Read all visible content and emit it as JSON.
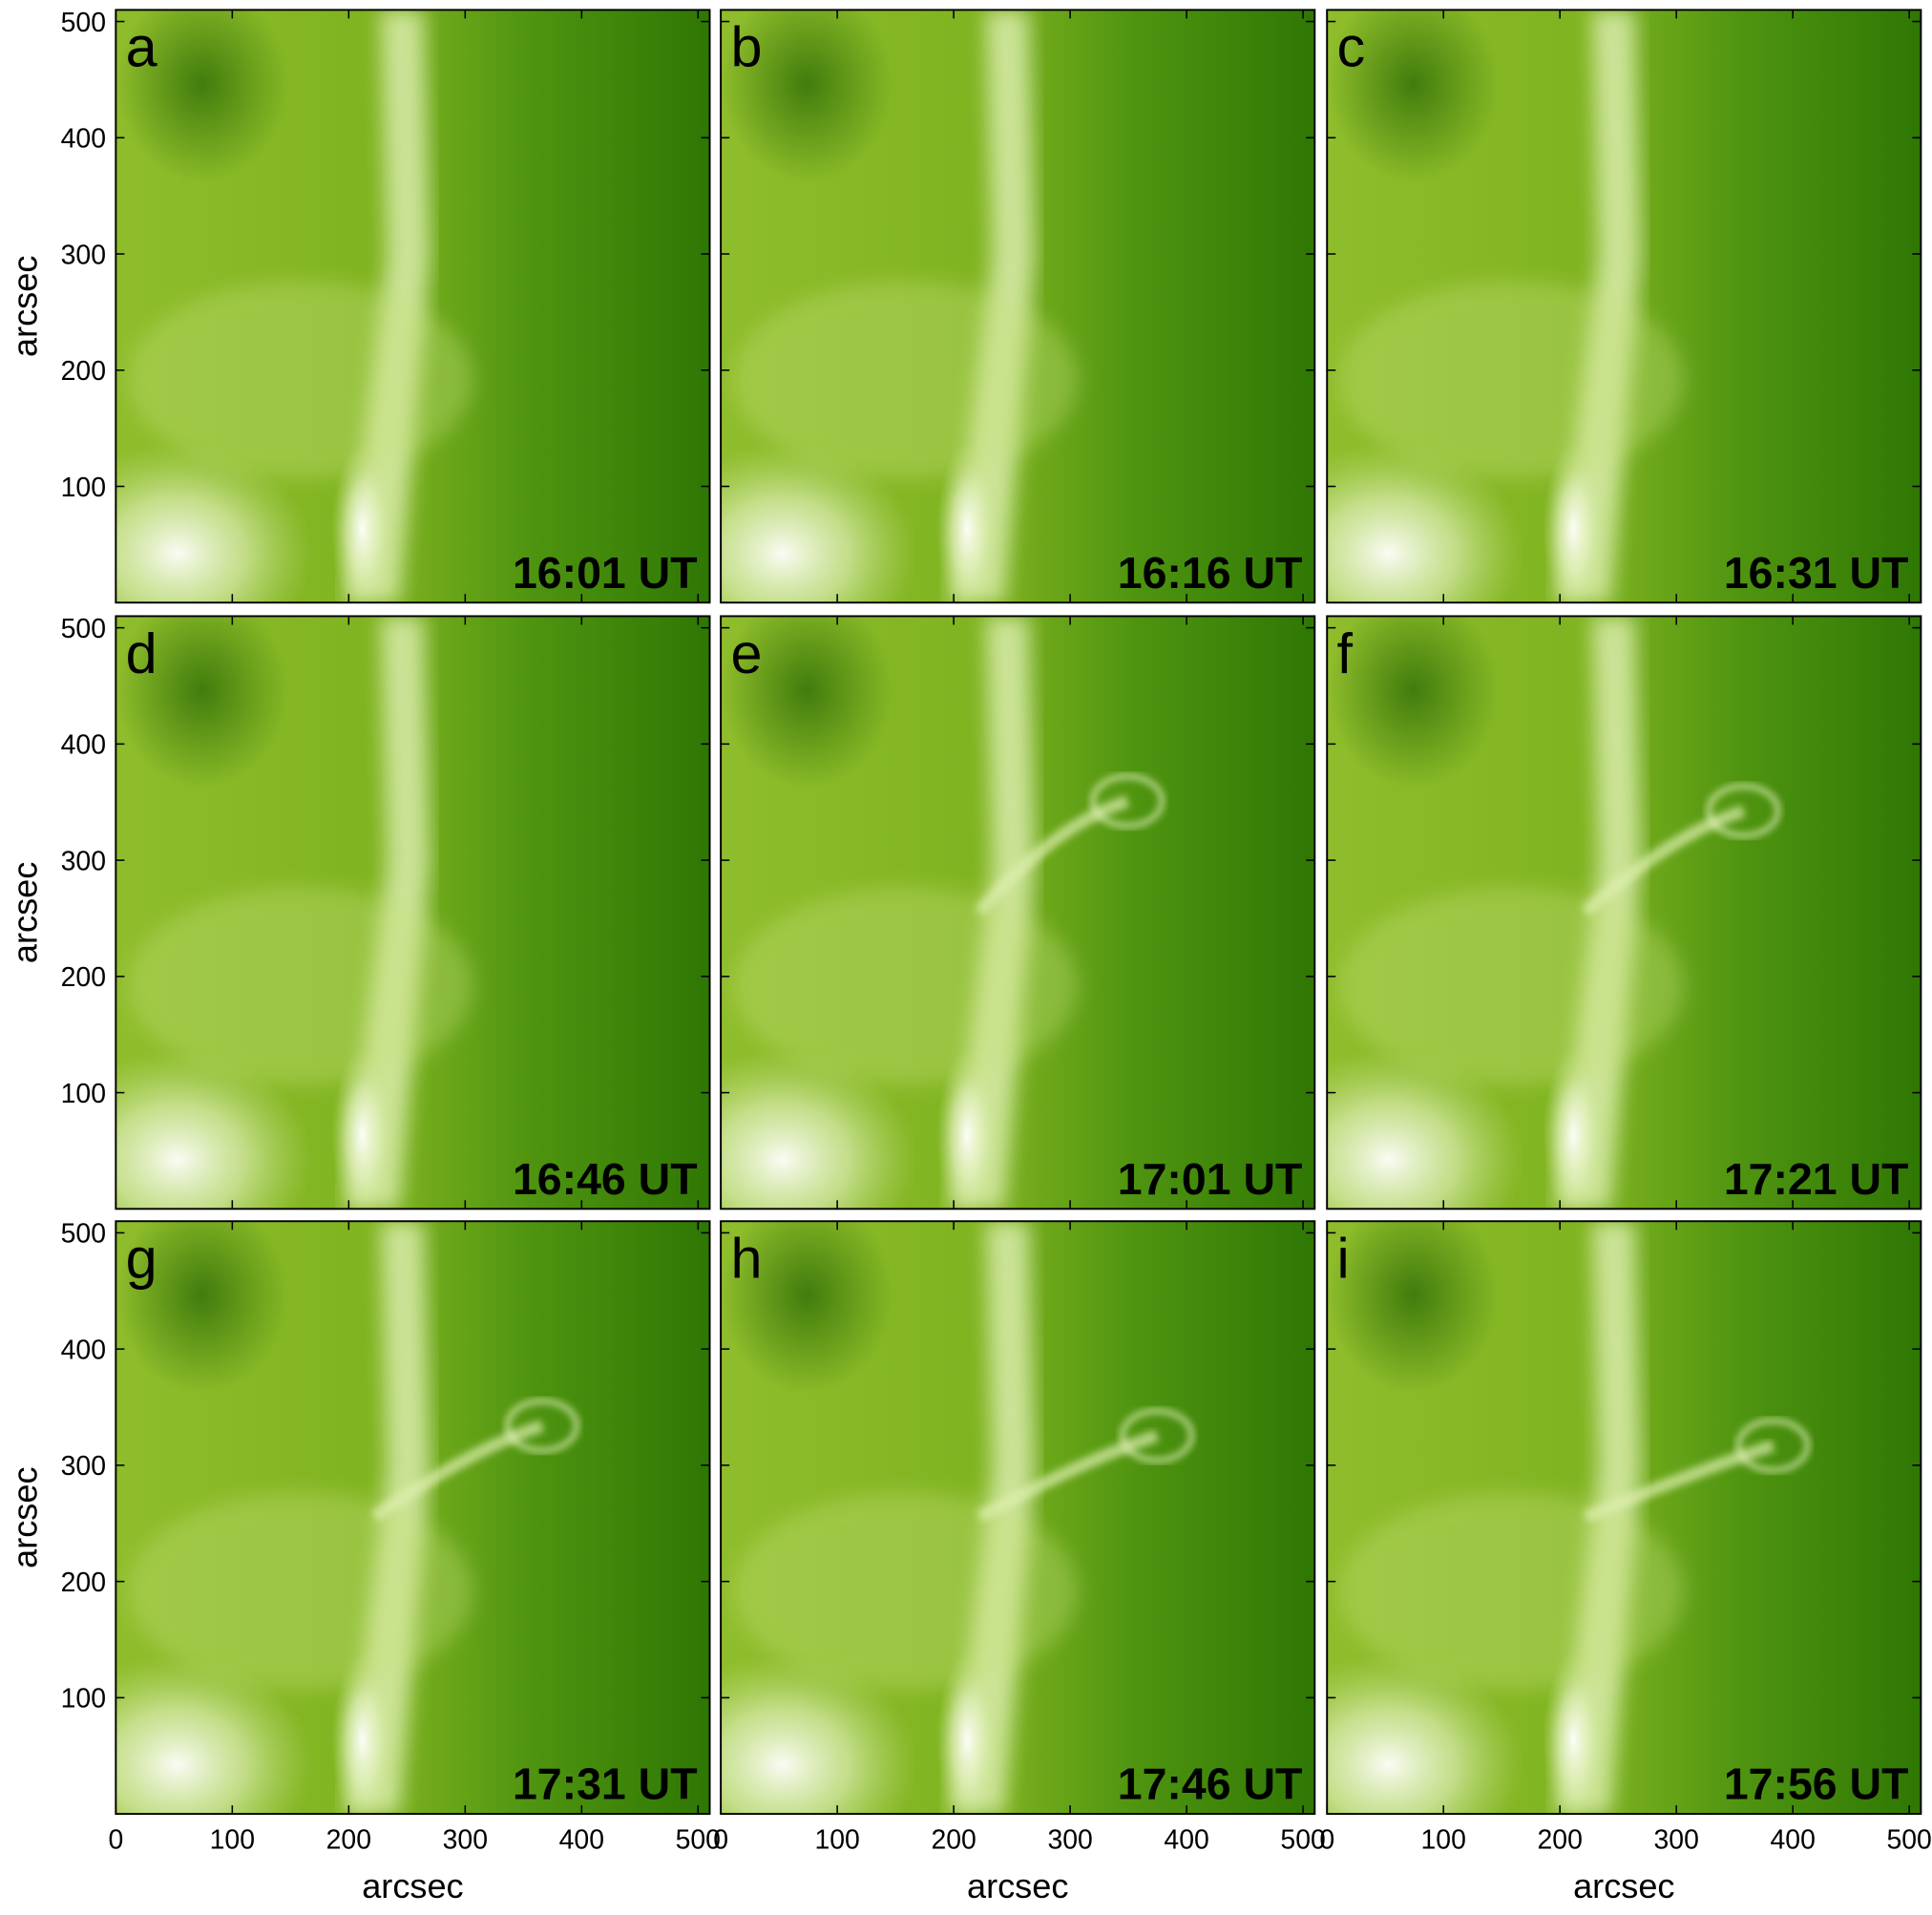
{
  "panels": [
    {
      "letter": "a",
      "time": "16:01 UT"
    },
    {
      "letter": "b",
      "time": "16:16 UT"
    },
    {
      "letter": "c",
      "time": "16:31 UT"
    },
    {
      "letter": "d",
      "time": "16:46 UT"
    },
    {
      "letter": "e",
      "time": "17:01 UT"
    },
    {
      "letter": "f",
      "time": "17:21 UT"
    },
    {
      "letter": "g",
      "time": "17:31 UT"
    },
    {
      "letter": "h",
      "time": "17:46 UT"
    },
    {
      "letter": "i",
      "time": "17:56 UT"
    }
  ],
  "axes": {
    "xlabel": "arcsec",
    "ylabel": "arcsec",
    "xlim": [
      0,
      510
    ],
    "ylim": [
      0,
      510
    ],
    "xticks": [
      0,
      100,
      200,
      300,
      400,
      500
    ],
    "yticks": [
      100,
      200,
      300,
      400,
      500
    ]
  }
}
